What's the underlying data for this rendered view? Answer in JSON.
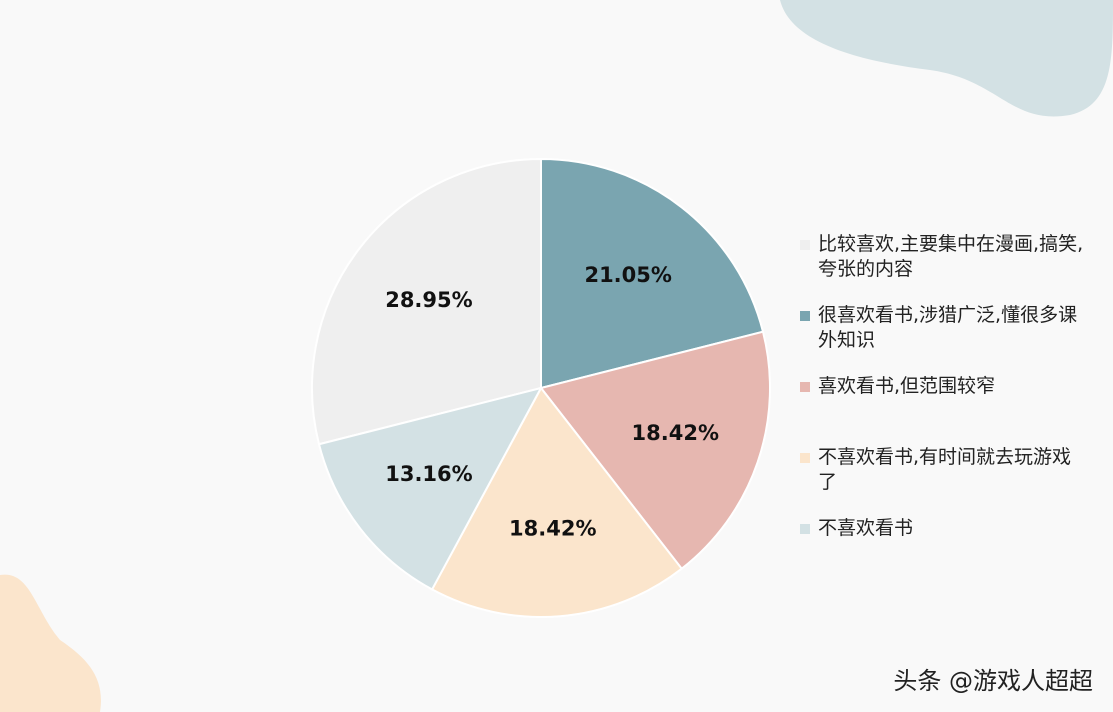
{
  "chart_data": {
    "type": "pie",
    "categories": [
      "比较喜欢,主要集中在漫画,搞笑,夸张的内容",
      "很喜欢看书,涉猎广泛,懂很多课外知识",
      "喜欢看书,但范围较窄",
      "不喜欢看书,有时间就去玩游戏了",
      "不喜欢看书"
    ],
    "values": [
      28.95,
      21.05,
      18.42,
      18.42,
      13.16
    ],
    "value_labels": [
      "28.95%",
      "21.05%",
      "18.42%",
      "18.42%",
      "13.16%"
    ],
    "colors": [
      "#efefef",
      "#7aa5b0",
      "#e6b7b0",
      "#fbe5cc",
      "#d3e1e4"
    ],
    "legend": "right"
  },
  "watermark": "头条 @游戏人超超"
}
